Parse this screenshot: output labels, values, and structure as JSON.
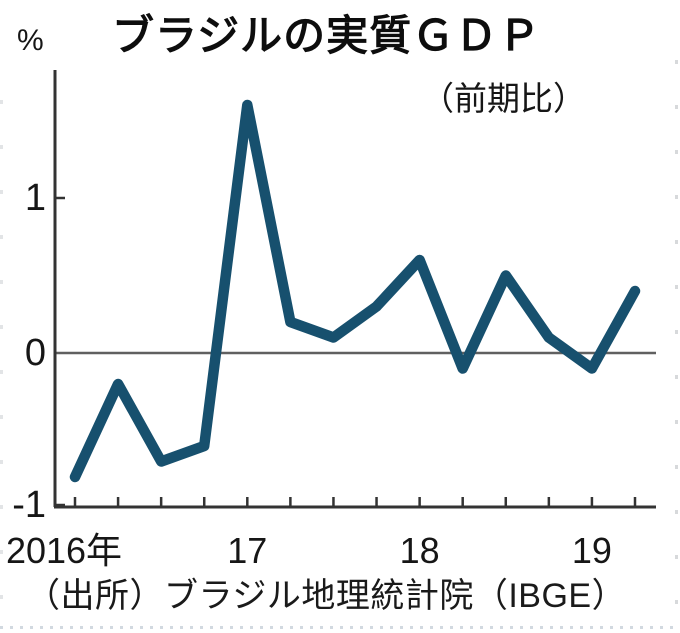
{
  "title": "ブラジルの実質ＧＤＰ",
  "unit_label": "%",
  "subtitle": "（前期比）",
  "source": "（出所）ブラジル地理統計院（IBGE）",
  "chart_data": {
    "type": "line",
    "series_name": "実質GDP前期比",
    "unit": "%",
    "x": [
      "2016Q1",
      "2016Q2",
      "2016Q3",
      "2016Q4",
      "2017Q1",
      "2017Q2",
      "2017Q3",
      "2017Q4",
      "2018Q1",
      "2018Q2",
      "2018Q3",
      "2018Q4",
      "2019Q1",
      "2019Q2"
    ],
    "values": [
      -0.8,
      -0.2,
      -0.7,
      -0.6,
      1.6,
      0.2,
      0.1,
      0.3,
      0.6,
      -0.1,
      0.5,
      0.1,
      -0.1,
      0.4
    ],
    "ylim": [
      -1,
      1.75
    ],
    "yticks": [
      {
        "value": 1,
        "label": "1"
      },
      {
        "value": 0,
        "label": "0"
      },
      {
        "value": -1,
        "label": "-1"
      }
    ],
    "xticks_labeled": [
      {
        "index": 0,
        "label": "2016年"
      },
      {
        "index": 4,
        "label": "17"
      },
      {
        "index": 8,
        "label": "18"
      },
      {
        "index": 12,
        "label": "19"
      }
    ],
    "grid": "zero-line-only",
    "legend": "none",
    "line_color": "#17506e",
    "axis_color": "#333333",
    "zero_line_color": "#606060"
  }
}
